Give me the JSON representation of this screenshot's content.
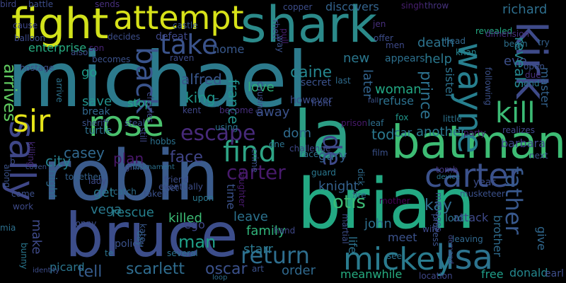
{
  "background": "#000000",
  "words": [
    {
      "text": "michael",
      "color": "#2c7a8c"
    },
    {
      "text": "robin",
      "color": "#3b5b8c"
    },
    {
      "text": "brian",
      "color": "#23a983"
    },
    {
      "text": "bruce",
      "color": "#3c4d8a"
    },
    {
      "text": "shark",
      "color": "#2b8a8a"
    },
    {
      "text": "la",
      "color": "#2c9f85"
    },
    {
      "text": "fight",
      "color": "#d2e21b"
    },
    {
      "text": "batman",
      "color": "#3dbc74"
    },
    {
      "text": "attempt",
      "color": "#d7e219"
    },
    {
      "text": "wayne",
      "color": "#277f8e"
    },
    {
      "text": "kirk",
      "color": "#3e4a89"
    },
    {
      "text": "sally",
      "color": "#3f4788"
    },
    {
      "text": "sir",
      "color": "#e5e419"
    },
    {
      "text": "carter",
      "color": "#3b518b"
    },
    {
      "text": "mickey",
      "color": "#2a7b8e"
    },
    {
      "text": "lisa",
      "color": "#2c738e"
    },
    {
      "text": "rose",
      "color": "#4ac16d"
    },
    {
      "text": "find",
      "color": "#2ea485"
    },
    {
      "text": "back",
      "color": "#3a548c"
    },
    {
      "text": "take",
      "color": "#3b538b"
    },
    {
      "text": "escape",
      "color": "#472a7a"
    },
    {
      "text": "kill",
      "color": "#3cbb75"
    },
    {
      "text": "return",
      "color": "#2e6e8e"
    },
    {
      "text": "father",
      "color": "#38588c"
    },
    {
      "text": "de",
      "color": "#3e4989"
    },
    {
      "text": "arrives",
      "color": "#60ca60"
    },
    {
      "text": "carter",
      "color": "#481a6c"
    },
    {
      "text": "prince",
      "color": "#2c718e"
    },
    {
      "text": "plan",
      "color": "#481769"
    },
    {
      "text": "face",
      "color": "#404588"
    },
    {
      "text": "scarlett",
      "color": "#2f6c8e"
    },
    {
      "text": "oscar",
      "color": "#3b518b"
    },
    {
      "text": "tell",
      "color": "#365c8d"
    },
    {
      "text": "man",
      "color": "#1fa088"
    },
    {
      "text": "caine",
      "color": "#25858e"
    },
    {
      "text": "love",
      "color": "#30b07a"
    },
    {
      "text": "woman",
      "color": "#22a884"
    },
    {
      "text": "enterprise",
      "color": "#27ad81"
    },
    {
      "text": "help",
      "color": "#2a788e"
    },
    {
      "text": "death",
      "color": "#2c738e"
    },
    {
      "text": "richard",
      "color": "#2e6f8e"
    },
    {
      "text": "eve",
      "color": "#3c4f8a"
    },
    {
      "text": "reveals",
      "color": "#24868e"
    },
    {
      "text": "master",
      "color": "#33628d"
    },
    {
      "text": "barbara",
      "color": "#3f4889"
    },
    {
      "text": "sister",
      "color": "#2c728e"
    },
    {
      "text": "alfred",
      "color": "#39568c"
    },
    {
      "text": "king",
      "color": "#1f978b"
    },
    {
      "text": "france",
      "color": "#21918c"
    },
    {
      "text": "home",
      "color": "#38588c"
    },
    {
      "text": "defeat",
      "color": "#3f4889"
    },
    {
      "text": "new",
      "color": "#2a778e"
    },
    {
      "text": "later",
      "color": "#32648e"
    },
    {
      "text": "secret",
      "color": "#3b528b"
    },
    {
      "text": "however",
      "color": "#3d4e8a"
    },
    {
      "text": "refuse",
      "color": "#2c718e"
    },
    {
      "text": "tod",
      "color": "#2a788e"
    },
    {
      "text": "dom",
      "color": "#2f6c8e"
    },
    {
      "text": "away",
      "color": "#3b528b"
    },
    {
      "text": "gary",
      "color": "#35608d"
    },
    {
      "text": "another",
      "color": "#2a788e"
    },
    {
      "text": "car",
      "color": "#2e6e8e"
    },
    {
      "text": "knight",
      "color": "#34618d"
    },
    {
      "text": "otis",
      "color": "#3cbb75"
    },
    {
      "text": "city",
      "color": "#27808e"
    },
    {
      "text": "casey",
      "color": "#31688e"
    },
    {
      "text": "go",
      "color": "#1e9b8a"
    },
    {
      "text": "save",
      "color": "#21918c"
    },
    {
      "text": "stop",
      "color": "#21a685"
    },
    {
      "text": "break",
      "color": "#31688e"
    },
    {
      "text": "turtle",
      "color": "#2d718e"
    },
    {
      "text": "get",
      "color": "#2a788e"
    },
    {
      "text": "vega",
      "color": "#29798e"
    },
    {
      "text": "make",
      "color": "#3e4a89"
    },
    {
      "text": "night",
      "color": "#2f6b8e"
    },
    {
      "text": "rescue",
      "color": "#26818e"
    },
    {
      "text": "killed",
      "color": "#3cbb75"
    },
    {
      "text": "time",
      "color": "#3b528b"
    },
    {
      "text": "leave",
      "color": "#2c728e"
    },
    {
      "text": "family",
      "color": "#31b57b"
    },
    {
      "text": "john",
      "color": "#2e6e8e"
    },
    {
      "text": "kay",
      "color": "#2f6b8e"
    },
    {
      "text": "starr",
      "color": "#2a778e"
    },
    {
      "text": "order",
      "color": "#30698e"
    },
    {
      "text": "meanwhile",
      "color": "#26ad81"
    },
    {
      "text": "donald",
      "color": "#24878e"
    },
    {
      "text": "picard",
      "color": "#2b758e"
    },
    {
      "text": "earl",
      "color": "#3d4e8a"
    },
    {
      "text": "brother",
      "color": "#2f6c8e"
    },
    {
      "text": "attack",
      "color": "#3e4a89"
    },
    {
      "text": "give",
      "color": "#31688e"
    },
    {
      "text": "meet",
      "color": "#3b528b"
    },
    {
      "text": "lord",
      "color": "#2c738e"
    },
    {
      "text": "free",
      "color": "#1f9e89"
    },
    {
      "text": "life",
      "color": "#2c728e"
    },
    {
      "text": "ego",
      "color": "#3f4788"
    },
    {
      "text": "battle",
      "color": "#3d4d8a"
    },
    {
      "text": "sends",
      "color": "#472f7d"
    },
    {
      "text": "copper",
      "color": "#3d4d8a"
    },
    {
      "text": "discovers",
      "color": "#33638d"
    },
    {
      "text": "singh",
      "color": "#481f70"
    },
    {
      "text": "throw",
      "color": "#46327e"
    },
    {
      "text": "son",
      "color": "#482374"
    },
    {
      "text": "decides",
      "color": "#3d4e8a"
    },
    {
      "text": "castle",
      "color": "#38588c"
    },
    {
      "text": "men",
      "color": "#3e4989"
    },
    {
      "text": "appears",
      "color": "#2d708e"
    },
    {
      "text": "revealed",
      "color": "#23a983"
    },
    {
      "text": "begin",
      "color": "#2d708e"
    },
    {
      "text": "dimension",
      "color": "#462f7c"
    },
    {
      "text": "head",
      "color": "#31688e"
    },
    {
      "text": "khan",
      "color": "#25848e"
    },
    {
      "text": "try",
      "color": "#34618d"
    },
    {
      "text": "open",
      "color": "#3b528b"
    },
    {
      "text": "due",
      "color": "#472f7d"
    },
    {
      "text": "end",
      "color": "#2a788e"
    },
    {
      "text": "following",
      "color": "#3b518b"
    },
    {
      "text": "also",
      "color": "#3c4f8a"
    },
    {
      "text": "becomes",
      "color": "#3b528b"
    },
    {
      "text": "raven",
      "color": "#3e4c8a"
    },
    {
      "text": "sheriff",
      "color": "#3b528b"
    },
    {
      "text": "arrive",
      "color": "#2c728e"
    },
    {
      "text": "together",
      "color": "#34618d"
    },
    {
      "text": "gillian",
      "color": "#3e4989"
    },
    {
      "text": "kent",
      "color": "#3f4788"
    },
    {
      "text": "hobbs",
      "color": "#2c718e"
    },
    {
      "text": "steal",
      "color": "#3b518b"
    },
    {
      "text": "become",
      "color": "#472f7d"
    },
    {
      "text": "leaf",
      "color": "#2e6f8e"
    },
    {
      "text": "prison",
      "color": "#481a6c"
    },
    {
      "text": "front",
      "color": "#3d4d8a"
    },
    {
      "text": "last",
      "color": "#2f6c8e"
    },
    {
      "text": "fox",
      "color": "#1f968b"
    },
    {
      "text": "fall",
      "color": "#3b528b"
    },
    {
      "text": "little",
      "color": "#2c738e"
    },
    {
      "text": "party",
      "color": "#482374"
    },
    {
      "text": "realizes",
      "color": "#3f4889"
    },
    {
      "text": "next",
      "color": "#3a548c"
    },
    {
      "text": "tomb",
      "color": "#453781"
    },
    {
      "text": "device",
      "color": "#2a778e"
    },
    {
      "text": "lady",
      "color": "#3e4a89"
    },
    {
      "text": "catch",
      "color": "#2e6f8e"
    },
    {
      "text": "taken",
      "color": "#3b528b"
    },
    {
      "text": "friend",
      "color": "#3d4d8a"
    },
    {
      "text": "set",
      "color": "#3b528b"
    },
    {
      "text": "upon",
      "color": "#2a788e"
    },
    {
      "text": "hand",
      "color": "#3f4788"
    },
    {
      "text": "mother",
      "color": "#440154"
    },
    {
      "text": "fire",
      "color": "#2e6e8e"
    },
    {
      "text": "musketeer",
      "color": "#3b518b"
    },
    {
      "text": "year",
      "color": "#3d4e8a"
    },
    {
      "text": "wife",
      "color": "#3e4989"
    },
    {
      "text": "leaving",
      "color": "#31688e"
    },
    {
      "text": "location",
      "color": "#3f4788"
    },
    {
      "text": "loop",
      "color": "#2e6e8e"
    },
    {
      "text": "art",
      "color": "#3b528b"
    },
    {
      "text": "several",
      "color": "#2c718e"
    },
    {
      "text": "day",
      "color": "#2f6b8e"
    },
    {
      "text": "te",
      "color": "#2c738e"
    },
    {
      "text": "police",
      "color": "#3b528b"
    },
    {
      "text": "identity",
      "color": "#3d4e8a"
    },
    {
      "text": "bunny",
      "color": "#2a778e"
    },
    {
      "text": "mia",
      "color": "#2d708e"
    },
    {
      "text": "come",
      "color": "#3c4f8a"
    },
    {
      "text": "work",
      "color": "#3e4a89"
    },
    {
      "text": "coven",
      "color": "#3b528b"
    },
    {
      "text": "ronny",
      "color": "#3d4d8a"
    },
    {
      "text": "kate",
      "color": "#38588c"
    },
    {
      "text": "tournament",
      "color": "#2c718e"
    },
    {
      "text": "along",
      "color": "#3b528b"
    },
    {
      "text": "cause",
      "color": "#3f4788"
    },
    {
      "text": "balloon",
      "color": "#3e4c8a"
    },
    {
      "text": "hostage",
      "color": "#3d4e8a"
    },
    {
      "text": "rhett",
      "color": "#3e4989"
    },
    {
      "text": "jen",
      "color": "#472f7d"
    },
    {
      "text": "offer",
      "color": "#3d4d8a"
    },
    {
      "text": "process",
      "color": "#3b528b"
    },
    {
      "text": "martial",
      "color": "#3d4e8a"
    },
    {
      "text": "manages",
      "color": "#3e4c8a"
    },
    {
      "text": "demand",
      "color": "#3f4788"
    },
    {
      "text": "see",
      "color": "#2c718e"
    },
    {
      "text": "film",
      "color": "#3b528b"
    },
    {
      "text": "race",
      "color": "#2e6f8e"
    },
    {
      "text": "challenge",
      "color": "#3e4989"
    },
    {
      "text": "one",
      "color": "#2c728e"
    },
    {
      "text": "dick",
      "color": "#2f6c8e"
    },
    {
      "text": "guard",
      "color": "#2a778e"
    },
    {
      "text": "daughter",
      "color": "#481a6c"
    },
    {
      "text": "crime",
      "color": "#3b518b"
    },
    {
      "text": "causing",
      "color": "#3e4c8a"
    },
    {
      "text": "us",
      "color": "#2d708e"
    },
    {
      "text": "using",
      "color": "#2c738e"
    },
    {
      "text": "still",
      "color": "#3f4788"
    },
    {
      "text": "charles",
      "color": "#3e4989"
    },
    {
      "text": "eventually",
      "color": "#3d4d8a"
    },
    {
      "text": "way",
      "color": "#3b528b"
    },
    {
      "text": "pull",
      "color": "#481f70"
    },
    {
      "text": "killing",
      "color": "#472a7a"
    },
    {
      "text": "b",
      "color": "#3e4c8a"
    },
    {
      "text": "bird",
      "color": "#3f4788"
    }
  ]
}
